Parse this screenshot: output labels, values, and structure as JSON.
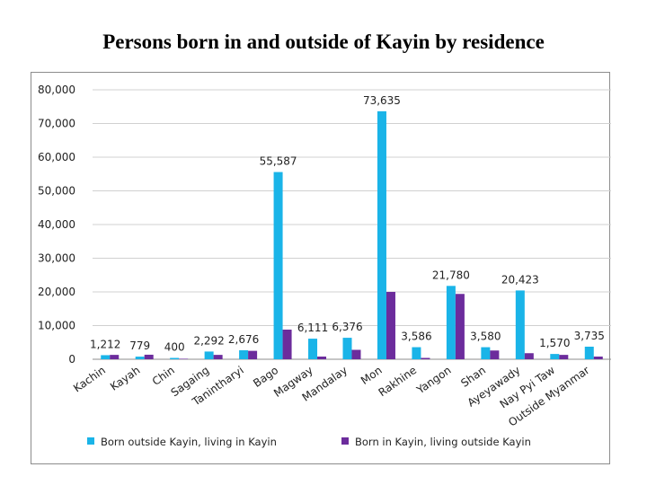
{
  "title": "Persons born in and outside of Kayin by residence",
  "colors": {
    "series1": "#1ab4e8",
    "series2": "#6c2c9c",
    "grid": "#d0d0d0",
    "axis": "#8c8c8c"
  },
  "chart_data": {
    "type": "bar",
    "title": "Persons born in and outside of Kayin by residence",
    "categories": [
      "Kachin",
      "Kayah",
      "Chin",
      "Sagaing",
      "Tanintharyi",
      "Bago",
      "Magway",
      "Mandalay",
      "Mon",
      "Rakhine",
      "Yangon",
      "Shan",
      "Ayeyawady",
      "Nay Pyi Taw",
      "Outside Myanmar"
    ],
    "series": [
      {
        "name": "Born outside Kayin, living in Kayin",
        "values": [
          1212,
          779,
          400,
          2292,
          2676,
          55587,
          6111,
          6376,
          73635,
          3586,
          21780,
          3580,
          20423,
          1570,
          3735
        ]
      },
      {
        "name": "Born in Kayin, living outside Kayin",
        "values": [
          1300,
          1350,
          150,
          1300,
          2500,
          8800,
          800,
          2800,
          20000,
          400,
          19400,
          2600,
          1800,
          1300,
          800
        ]
      }
    ],
    "data_labels": [
      "1,212",
      "779",
      "400",
      "2,292",
      "2,676",
      "55,587",
      "6,111",
      "6,376",
      "73,635",
      "3,586",
      "21,780",
      "3,580",
      "20,423",
      "1,570",
      "3,735"
    ],
    "y_ticks": [
      "0",
      "10,000",
      "20,000",
      "30,000",
      "40,000",
      "50,000",
      "60,000",
      "70,000",
      "80,000"
    ],
    "ylim": [
      0,
      80000
    ],
    "grid": true,
    "legend_position": "bottom",
    "xlabel": "",
    "ylabel": ""
  }
}
